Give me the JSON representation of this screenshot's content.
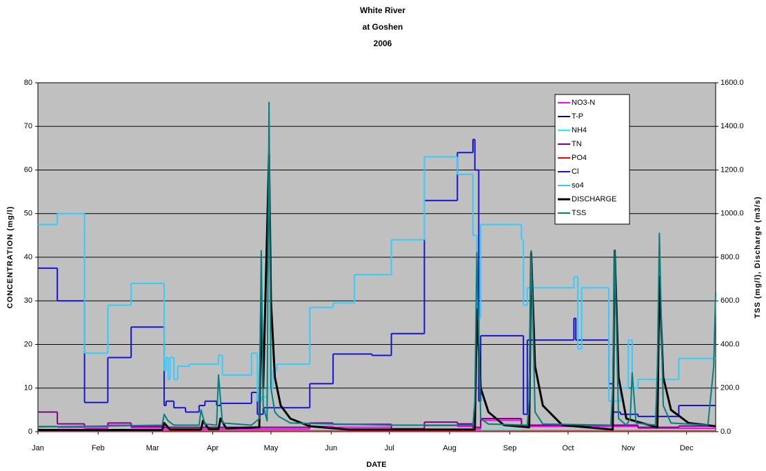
{
  "chart_data": {
    "type": "line",
    "title": [
      "White River",
      "at Goshen",
      "2006"
    ],
    "x_label": "DATE",
    "y_label": "CONCENTRATION (mg/l)",
    "y2_label": "TSS (mg/l), Discharge (m3/s)",
    "xlim": [
      0,
      349
    ],
    "xticks": [
      {
        "value": 0,
        "label": "Jan"
      },
      {
        "value": 31,
        "label": "Feb"
      },
      {
        "value": 59,
        "label": "Mar"
      },
      {
        "value": 90,
        "label": "Apr"
      },
      {
        "value": 120,
        "label": "May"
      },
      {
        "value": 151,
        "label": "Jun"
      },
      {
        "value": 181,
        "label": "Jul"
      },
      {
        "value": 212,
        "label": "Aug"
      },
      {
        "value": 243,
        "label": "Sep"
      },
      {
        "value": 273,
        "label": "Oct"
      },
      {
        "value": 304,
        "label": "Nov"
      },
      {
        "value": 334,
        "label": "Dec"
      }
    ],
    "ylim": [
      0,
      80
    ],
    "yticks": [
      0,
      10,
      20,
      30,
      40,
      50,
      60,
      70,
      80
    ],
    "y2lim": [
      0,
      1600
    ],
    "y2ticks": [
      {
        "value": 0,
        "label": "0.0"
      },
      {
        "value": 200,
        "label": "200.0"
      },
      {
        "value": 400,
        "label": "400.0"
      },
      {
        "value": 600,
        "label": "600.0"
      },
      {
        "value": 800,
        "label": "800.0"
      },
      {
        "value": 1000,
        "label": "1000.0"
      },
      {
        "value": 1200,
        "label": "1200.0"
      },
      {
        "value": 1400,
        "label": "1400.0"
      },
      {
        "value": 1600,
        "label": "1600.0"
      }
    ],
    "grid": true,
    "plot_background": "#c0c0c0",
    "legend": "upper right",
    "series": [
      {
        "name": "NO3-N",
        "color": "#ff00ff",
        "step": true,
        "x": [
          0,
          10,
          24,
          36,
          48,
          65,
          140,
          152,
          182,
          199,
          216,
          224,
          228,
          249,
          309
        ],
        "values": [
          1.2,
          1,
          0.8,
          1.5,
          0.9,
          0.6,
          1.2,
          1,
          0.5,
          1.4,
          1.2,
          0.6,
          2.6,
          1.2,
          0.8
        ]
      },
      {
        "name": "T-P",
        "color": "#000080",
        "step": true,
        "x": [
          0,
          65,
          228,
          249
        ],
        "values": [
          0.3,
          0.2,
          0.3,
          0.2
        ]
      },
      {
        "name": "NH4",
        "color": "#00ffff",
        "step": true,
        "x": [
          0,
          65,
          199,
          228,
          249
        ],
        "values": [
          0.3,
          0.2,
          0.3,
          0.4,
          0.2
        ]
      },
      {
        "name": "TN",
        "color": "#800080",
        "step": true,
        "x": [
          0,
          10,
          24,
          36,
          48,
          65,
          140,
          152,
          182,
          199,
          216,
          224,
          228,
          249,
          309,
          330
        ],
        "values": [
          4.5,
          1.8,
          1.2,
          2,
          1.2,
          1,
          2,
          1.7,
          0.7,
          2.2,
          1.8,
          1,
          3,
          1.5,
          1,
          1.3
        ]
      },
      {
        "name": "PO4",
        "color": "#ff0000",
        "step": true,
        "x": [
          0
        ],
        "values": [
          0.1
        ]
      },
      {
        "name": "Cl",
        "color": "#1414d2",
        "step": true,
        "x": [
          0,
          10,
          24,
          36,
          48,
          65,
          66,
          70,
          76,
          83,
          86,
          92,
          94,
          110,
          113,
          116,
          140,
          152,
          172,
          182,
          199,
          216,
          224,
          225,
          227,
          228,
          249,
          250,
          252,
          276,
          277,
          279,
          294,
          296,
          300,
          309,
          330
        ],
        "values": [
          37.5,
          30,
          6.7,
          17,
          24,
          6,
          7,
          5.5,
          4.5,
          6,
          7,
          6,
          6.5,
          9,
          4,
          5.5,
          11,
          17.8,
          17.5,
          22.5,
          53,
          64,
          67,
          60,
          7,
          22,
          22,
          4,
          21,
          26,
          21,
          21,
          11,
          4.5,
          4,
          3.5,
          6
        ]
      },
      {
        "name": "so4",
        "color": "#33ccff",
        "step": true,
        "x": [
          0,
          10,
          24,
          36,
          48,
          65,
          66,
          67,
          68,
          70,
          72,
          78,
          93,
          95,
          110,
          113,
          115,
          118,
          121,
          123,
          140,
          152,
          163,
          182,
          199,
          216,
          224,
          226,
          228,
          249,
          250,
          252,
          276,
          278,
          280,
          294,
          300,
          304,
          306,
          309,
          330
        ],
        "values": [
          47.5,
          50,
          18,
          29,
          34,
          14,
          17,
          12,
          17,
          12,
          15,
          15.5,
          17.5,
          13,
          18,
          7,
          8,
          10,
          14,
          15.5,
          28.5,
          29.5,
          36,
          44,
          63,
          59,
          45,
          26,
          47.5,
          44,
          29,
          33,
          35.5,
          19,
          33,
          7,
          10,
          21,
          10,
          12,
          16.8
        ]
      },
      {
        "name": "DISCHARGE",
        "color": "#000000",
        "axis": "y2",
        "width": 3,
        "x": [
          0,
          64,
          65,
          68,
          84,
          85,
          88,
          93,
          94,
          97,
          114,
          115,
          116,
          119,
          120,
          122,
          125,
          130,
          140,
          160,
          225,
          226,
          228,
          232,
          240,
          253,
          254,
          256,
          260,
          270,
          296,
          297,
          299,
          303,
          319,
          320,
          322,
          326,
          335,
          349
        ],
        "values": [
          8,
          8,
          40,
          10,
          10,
          50,
          12,
          12,
          60,
          15,
          20,
          620,
          200,
          1270,
          600,
          250,
          120,
          60,
          25,
          10,
          10,
          560,
          200,
          90,
          30,
          20,
          820,
          300,
          120,
          30,
          10,
          830,
          250,
          60,
          20,
          710,
          250,
          100,
          40,
          25
        ]
      },
      {
        "name": "TSS",
        "color": "#008080",
        "axis": "y2",
        "width": 2,
        "x": [
          0,
          36,
          64,
          65,
          67,
          70,
          83,
          84,
          86,
          92,
          93,
          95,
          110,
          114,
          115,
          116,
          118,
          119,
          120,
          122,
          124,
          130,
          180,
          224,
          225,
          226,
          228,
          232,
          252,
          253,
          254,
          256,
          260,
          295,
          296,
          297,
          299,
          303,
          305,
          306,
          308,
          318,
          319,
          320,
          322,
          326,
          345,
          348,
          349
        ],
        "values": [
          22,
          26,
          30,
          80,
          50,
          30,
          30,
          100,
          35,
          30,
          260,
          40,
          30,
          60,
          830,
          120,
          50,
          1510,
          200,
          90,
          70,
          40,
          30,
          30,
          140,
          820,
          60,
          35,
          30,
          150,
          830,
          90,
          35,
          30,
          200,
          830,
          60,
          30,
          60,
          270,
          40,
          30,
          300,
          910,
          120,
          40,
          30,
          300,
          640
        ]
      }
    ]
  }
}
